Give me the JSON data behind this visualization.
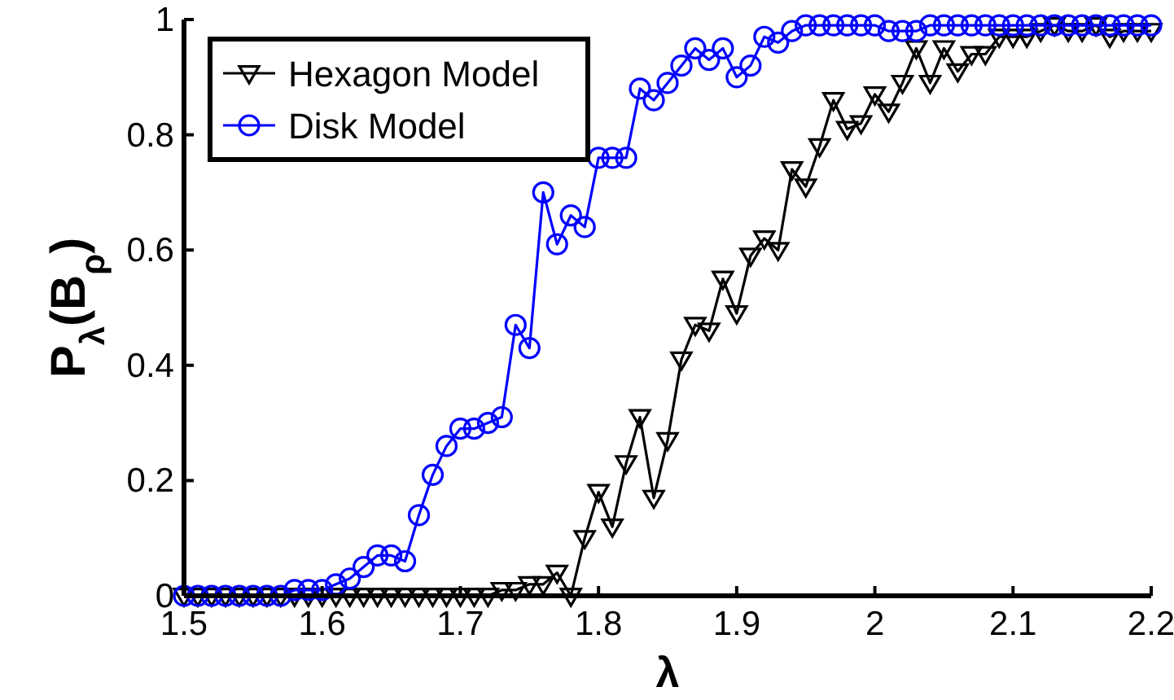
{
  "chart_data": {
    "type": "line",
    "xlabel": "λ",
    "ylabel": "P$_{λ}$(B$_{ρ}$)",
    "x": [
      1.5,
      1.51,
      1.52,
      1.53,
      1.54,
      1.55,
      1.56,
      1.57,
      1.58,
      1.59,
      1.6,
      1.61,
      1.62,
      1.63,
      1.64,
      1.65,
      1.66,
      1.67,
      1.68,
      1.69,
      1.7,
      1.71,
      1.72,
      1.73,
      1.74,
      1.75,
      1.76,
      1.77,
      1.78,
      1.79,
      1.8,
      1.81,
      1.82,
      1.83,
      1.84,
      1.85,
      1.86,
      1.87,
      1.88,
      1.89,
      1.9,
      1.91,
      1.92,
      1.93,
      1.94,
      1.95,
      1.96,
      1.97,
      1.98,
      1.99,
      2.0,
      2.01,
      2.02,
      2.03,
      2.04,
      2.05,
      2.06,
      2.07,
      2.08,
      2.09,
      2.1,
      2.11,
      2.12,
      2.13,
      2.14,
      2.15,
      2.16,
      2.17,
      2.18,
      2.19,
      2.2
    ],
    "series": [
      {
        "name": "Hexagon Model",
        "color": "#000000",
        "marker": "triangle",
        "values": [
          0,
          0,
          0,
          0,
          0,
          0,
          0,
          0,
          0,
          0,
          0,
          0,
          0,
          0,
          0,
          0,
          0,
          0,
          0,
          0,
          0,
          0,
          0,
          0.01,
          0.01,
          0.02,
          0.02,
          0.04,
          0,
          0.1,
          0.18,
          0.12,
          0.23,
          0.31,
          0.17,
          0.27,
          0.41,
          0.47,
          0.46,
          0.55,
          0.49,
          0.59,
          0.62,
          0.6,
          0.74,
          0.71,
          0.78,
          0.86,
          0.81,
          0.82,
          0.87,
          0.84,
          0.89,
          0.95,
          0.89,
          0.95,
          0.91,
          0.94,
          0.94,
          0.97,
          0.97,
          0.97,
          0.98,
          0.99,
          0.98,
          0.98,
          0.99,
          0.97,
          0.98,
          0.98,
          0.98
        ]
      },
      {
        "name": "Disk Model",
        "color": "#0000ff",
        "marker": "circle",
        "values": [
          0,
          0,
          0,
          0,
          0,
          0,
          0,
          0,
          0.01,
          0.01,
          0.01,
          0.02,
          0.03,
          0.05,
          0.07,
          0.07,
          0.06,
          0.14,
          0.21,
          0.26,
          0.29,
          0.29,
          0.3,
          0.31,
          0.47,
          0.43,
          0.7,
          0.61,
          0.66,
          0.64,
          0.76,
          0.76,
          0.76,
          0.88,
          0.86,
          0.89,
          0.92,
          0.95,
          0.93,
          0.95,
          0.9,
          0.92,
          0.97,
          0.96,
          0.98,
          0.99,
          0.99,
          0.99,
          0.99,
          0.99,
          0.99,
          0.98,
          0.98,
          0.98,
          0.99,
          0.99,
          0.99,
          0.99,
          0.99,
          0.99,
          0.99,
          0.99,
          0.99,
          0.99,
          0.99,
          0.99,
          0.99,
          0.99,
          0.99,
          0.99,
          0.99
        ]
      }
    ],
    "xlim": [
      1.5,
      2.2
    ],
    "xticks": [
      1.5,
      1.6,
      1.7,
      1.8,
      1.9,
      2,
      2.1,
      2.2
    ],
    "ylim": [
      0,
      1
    ],
    "yticks": [
      0,
      0.2,
      0.4,
      0.6,
      0.8,
      1
    ],
    "line_style": "solid",
    "legend": "top left",
    "grid": false
  }
}
